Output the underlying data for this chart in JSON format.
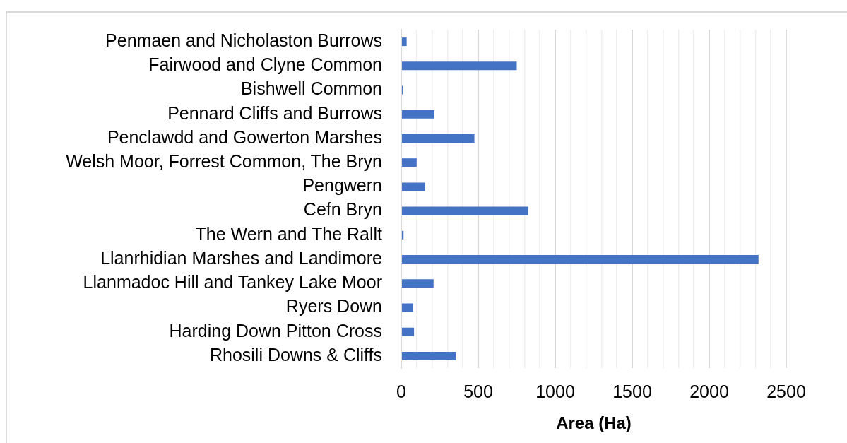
{
  "chart_data": {
    "type": "bar",
    "orientation": "horizontal",
    "xlabel": "Area (Ha)",
    "categories": [
      "Penmaen and Nicholaston Burrows",
      "Fairwood and Clyne Common",
      "Bishwell Common",
      "Pennard Cliffs and Burrows",
      "Penclawdd and Gowerton Marshes",
      "Welsh Moor, Forrest Common, The Bryn",
      "Pengwern",
      "Cefn Bryn",
      "The Wern and The Rallt",
      "Llanrhidian Marshes and Landimore",
      "Llanmadoc Hill and Tankey Lake Moor",
      "Ryers Down",
      "Harding Down Pitton Cross",
      "Rhosili Downs & Cliffs"
    ],
    "values": [
      35,
      750,
      10,
      215,
      475,
      100,
      155,
      825,
      15,
      2320,
      210,
      78,
      83,
      355
    ],
    "color": "#4472c4",
    "xlim": [
      0,
      2500
    ],
    "xticks": [
      0,
      {
        "value": 100,
        "label": null
      },
      {
        "value": 200,
        "label": null
      },
      {
        "value": 300,
        "label": null
      },
      {
        "value": 400,
        "label": null
      },
      500,
      {
        "value": 600,
        "label": null
      },
      {
        "value": 700,
        "label": null
      },
      {
        "value": 800,
        "label": null
      },
      {
        "value": 900,
        "label": null
      },
      1000,
      {
        "value": 1100,
        "label": null
      },
      {
        "value": 1200,
        "label": null
      },
      {
        "value": 1300,
        "label": null
      },
      {
        "value": 1400,
        "label": null
      },
      1500,
      {
        "value": 1600,
        "label": null
      },
      {
        "value": 1700,
        "label": null
      },
      {
        "value": 1800,
        "label": null
      },
      {
        "value": 1900,
        "label": null
      },
      2000,
      {
        "value": 2100,
        "label": null
      },
      {
        "value": 2200,
        "label": null
      },
      {
        "value": 2300,
        "label": null
      },
      {
        "value": 2400,
        "label": null
      },
      2500
    ],
    "grid": "x"
  }
}
